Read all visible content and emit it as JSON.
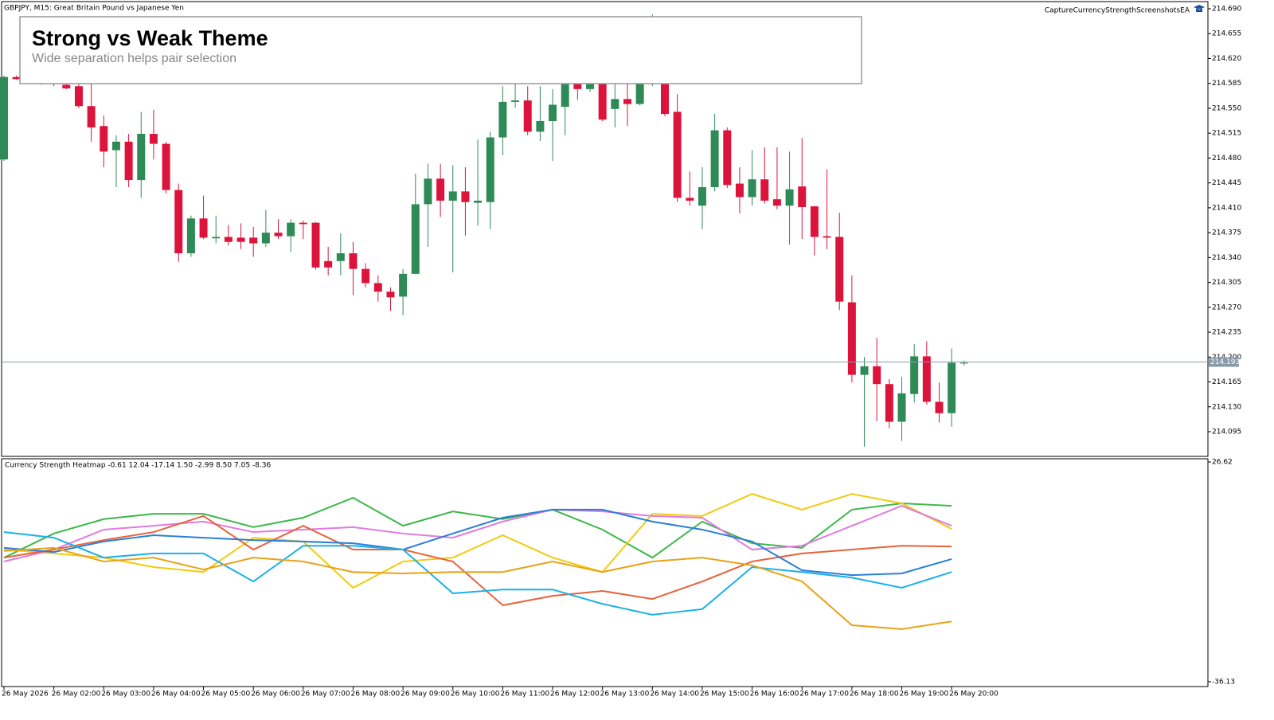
{
  "window": {
    "symbol_info": "GBPJPY, M15:  Great Britain Pound vs Japanese Yen",
    "ea_label": "CaptureCurrencyStrengthScreenshotsEA"
  },
  "overlay": {
    "title": "Strong vs Weak Theme",
    "subtitle": "Wide separation helps pair selection"
  },
  "time_axis": [
    "26 May 2026",
    "26 May 02:00",
    "26 May 03:00",
    "26 May 04:00",
    "26 May 05:00",
    "26 May 06:00",
    "26 May 07:00",
    "26 May 08:00",
    "26 May 09:00",
    "26 May 10:00",
    "26 May 11:00",
    "26 May 12:00",
    "26 May 13:00",
    "26 May 14:00",
    "26 May 15:00",
    "26 May 16:00",
    "26 May 17:00",
    "26 May 18:00",
    "26 May 19:00",
    "26 May 20:00"
  ],
  "chart_data": [
    {
      "type": "candlestick",
      "up_color": "#2e8b57",
      "down_color": "#dc143c",
      "current_price": 214.193,
      "ylim": [
        214.061,
        214.7
      ],
      "yticks": [
        {
          "value": 214.69,
          "label": "214.690"
        },
        214.655,
        {
          "value": 214.62,
          "label": "214.620"
        },
        214.585,
        {
          "value": 214.55,
          "label": "214.550"
        },
        214.515,
        {
          "value": 214.48,
          "label": "214.480"
        },
        214.445,
        {
          "value": 214.41,
          "label": "214.410"
        },
        214.375,
        {
          "value": 214.34,
          "label": "214.340"
        },
        214.305,
        {
          "value": 214.27,
          "label": "214.270"
        },
        214.235,
        {
          "value": 214.2,
          "label": "214.200"
        },
        214.165,
        {
          "value": 214.13,
          "label": "214.130"
        },
        214.095
      ],
      "open": [
        214.478,
        214.594,
        214.59,
        214.592,
        214.588,
        214.583,
        214.581,
        214.553,
        214.525,
        214.491,
        214.503,
        214.449,
        214.514,
        214.5,
        214.435,
        214.346,
        214.395,
        214.367,
        214.369,
        214.368,
        214.368,
        214.36,
        214.375,
        214.37,
        214.389,
        214.389,
        214.335,
        214.335,
        214.346,
        214.324,
        214.304,
        214.292,
        214.285,
        214.317,
        214.415,
        214.451,
        214.42,
        214.433,
        214.417,
        214.418,
        214.509,
        214.559,
        214.561,
        214.517,
        214.532,
        214.552,
        214.585,
        214.577,
        214.585,
        214.549,
        214.563,
        214.556,
        214.585,
        214.585,
        214.545,
        214.424,
        214.413,
        214.439,
        214.519,
        214.444,
        214.425,
        214.45,
        214.422,
        214.413,
        214.44,
        214.412,
        214.37,
        214.369,
        214.277,
        214.175,
        214.187,
        214.162,
        214.109,
        214.148,
        214.201,
        214.137,
        214.121,
        214.191
      ],
      "high": [
        214.596,
        214.596,
        214.595,
        214.597,
        214.594,
        214.59,
        214.59,
        214.585,
        214.54,
        214.512,
        214.514,
        214.545,
        214.548,
        214.503,
        214.444,
        214.399,
        214.427,
        214.399,
        214.386,
        214.388,
        214.383,
        214.407,
        214.394,
        214.394,
        214.392,
        214.39,
        214.355,
        214.374,
        214.362,
        214.332,
        214.315,
        214.298,
        214.324,
        214.458,
        214.472,
        214.472,
        214.47,
        214.467,
        214.506,
        214.517,
        214.581,
        214.585,
        214.581,
        214.581,
        214.577,
        214.59,
        214.59,
        214.59,
        214.59,
        214.585,
        214.585,
        214.59,
        214.682,
        214.59,
        214.57,
        214.461,
        214.467,
        214.542,
        214.523,
        214.467,
        214.491,
        214.495,
        214.495,
        214.489,
        214.508,
        214.413,
        214.464,
        214.403,
        214.315,
        214.2,
        214.227,
        214.169,
        214.172,
        214.218,
        214.222,
        214.164,
        214.212,
        214.195
      ],
      "low": [
        214.476,
        214.59,
        214.586,
        214.583,
        214.581,
        214.577,
        214.55,
        214.503,
        214.467,
        214.439,
        214.439,
        214.424,
        214.478,
        214.43,
        214.334,
        214.341,
        214.366,
        214.36,
        214.357,
        214.352,
        214.341,
        214.355,
        214.366,
        214.348,
        214.366,
        214.323,
        214.315,
        214.315,
        214.287,
        214.298,
        214.278,
        214.265,
        214.259,
        214.317,
        214.355,
        214.397,
        214.319,
        214.371,
        214.385,
        214.38,
        214.484,
        214.551,
        214.512,
        214.504,
        214.476,
        214.512,
        214.562,
        214.573,
        214.532,
        214.523,
        214.525,
        214.554,
        214.581,
        214.539,
        214.418,
        214.413,
        214.38,
        214.433,
        214.438,
        214.402,
        214.413,
        214.416,
        214.408,
        214.358,
        214.366,
        214.343,
        214.352,
        214.266,
        214.164,
        214.074,
        214.11,
        214.1,
        214.082,
        214.136,
        214.133,
        214.108,
        214.102,
        214.188
      ],
      "close": [
        214.594,
        214.591,
        214.592,
        214.588,
        214.586,
        214.578,
        214.553,
        214.523,
        214.489,
        214.503,
        214.449,
        214.514,
        214.5,
        214.435,
        214.346,
        214.395,
        214.368,
        214.369,
        214.362,
        214.362,
        214.36,
        214.375,
        214.37,
        214.389,
        214.387,
        214.326,
        214.326,
        214.346,
        214.324,
        214.304,
        214.292,
        214.284,
        214.317,
        214.415,
        214.451,
        214.42,
        214.433,
        214.418,
        214.42,
        214.509,
        214.559,
        214.561,
        214.517,
        214.532,
        214.555,
        214.585,
        214.577,
        214.585,
        214.534,
        214.563,
        214.556,
        214.585,
        214.59,
        214.542,
        214.424,
        214.42,
        214.439,
        214.519,
        214.442,
        214.425,
        214.45,
        214.42,
        214.413,
        214.436,
        214.411,
        214.369,
        214.368,
        214.278,
        214.175,
        214.187,
        214.162,
        214.109,
        214.149,
        214.201,
        214.137,
        214.121,
        214.192,
        214.192
      ]
    },
    {
      "type": "line",
      "title": "Currency Strength Heatmap -0.61 12.04 -17.14 1.50 -2.99 8.50 7.05 -8.36",
      "ylim": [
        -36.13,
        26.62
      ],
      "yticks": [
        26.62,
        -36.13
      ],
      "series": [
        {
          "color": "#3cb84a",
          "values": [
            -0.7,
            6.2,
            10.3,
            11.8,
            11.8,
            8.0,
            10.7,
            16.4,
            8.4,
            12.5,
            10.3,
            13.0,
            7.3,
            -0.7,
            9.6,
            3.4,
            2.1,
            13.0,
            14.8,
            14.1
          ]
        },
        {
          "color": "#f0cc10",
          "values": [
            1.6,
            0.5,
            -0.7,
            -3.4,
            -4.8,
            5.0,
            3.9,
            -9.3,
            -1.8,
            -0.7,
            5.7,
            -0.7,
            -4.8,
            11.8,
            11.2,
            17.5,
            13.0,
            17.5,
            14.8,
            7.5
          ]
        },
        {
          "color": "#e07be0",
          "values": [
            -1.8,
            1.6,
            7.3,
            8.4,
            9.6,
            6.6,
            7.3,
            8.0,
            6.2,
            5.0,
            9.6,
            13.0,
            12.5,
            11.2,
            10.7,
            1.6,
            2.7,
            8.4,
            14.1,
            8.4
          ]
        },
        {
          "color": "#e8623c",
          "values": [
            -0.7,
            1.6,
            4.3,
            6.6,
            11.2,
            1.6,
            8.4,
            1.6,
            1.6,
            -1.8,
            -14.3,
            -11.6,
            -10.2,
            -12.5,
            -7.5,
            -1.8,
            0.5,
            1.6,
            2.7,
            2.5
          ]
        },
        {
          "color": "#2a7fd6",
          "values": [
            2.1,
            0.9,
            3.9,
            5.7,
            5.0,
            4.3,
            3.9,
            3.4,
            1.6,
            6.2,
            10.7,
            13.0,
            13.0,
            9.6,
            7.3,
            3.9,
            -4.3,
            -5.7,
            -5.2,
            -1.1
          ]
        },
        {
          "color": "#1ab0e8",
          "values": [
            6.6,
            5.0,
            -0.7,
            0.5,
            0.5,
            -7.5,
            2.7,
            2.7,
            1.6,
            -10.9,
            -9.8,
            -9.8,
            -13.9,
            -17.0,
            -15.4,
            -3.4,
            -4.8,
            -6.4,
            -9.3,
            -4.8
          ]
        },
        {
          "color": "#e8a317",
          "values": [
            1.2,
            2.1,
            -1.8,
            -0.7,
            -4.1,
            -0.7,
            -1.8,
            -4.8,
            -5.2,
            -4.8,
            -4.8,
            -1.8,
            -4.8,
            -1.8,
            -0.7,
            -2.9,
            -7.5,
            -20.0,
            -21.1,
            -18.9
          ]
        }
      ]
    }
  ]
}
